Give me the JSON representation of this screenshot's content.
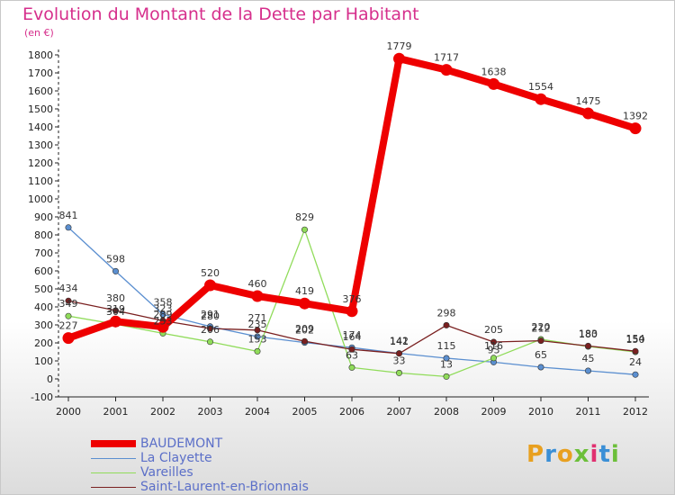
{
  "title": "Evolution du Montant de la Dette par Habitant",
  "unit": "(en €)",
  "brand": {
    "text": "Proxiti",
    "letters": [
      "P",
      "r",
      "o",
      "x",
      "i",
      "t",
      "i"
    ],
    "colors": [
      "#e8a020",
      "#3a8fd6",
      "#e8a020",
      "#6cbf3a",
      "#e03070",
      "#3a8fd6",
      "#6cbf3a"
    ]
  },
  "chart_data": {
    "type": "line",
    "title": "Evolution du Montant de la Dette par Habitant",
    "ylabel": "(en €)",
    "xlabel": "",
    "x": [
      "2000",
      "2001",
      "2002",
      "2003",
      "2004",
      "2005",
      "2006",
      "2007",
      "2008",
      "2009",
      "2010",
      "2011",
      "2012"
    ],
    "ylim": [
      -100,
      1800
    ],
    "yticks": [
      "-100",
      "0",
      "100",
      "200",
      "300",
      "400",
      "500",
      "600",
      "700",
      "800",
      "900",
      "1000",
      "1100",
      "1200",
      "1300",
      "1400",
      "1500",
      "1600",
      "1700",
      "1800"
    ],
    "grid": false,
    "legend_position": "bottom-left",
    "series": [
      {
        "name": "BAUDEMONT",
        "color": "#ee0000",
        "values": [
          227,
          319,
          289,
          520,
          460,
          419,
          376,
          1779,
          1717,
          1638,
          1554,
          1475,
          1392
        ],
        "labels": [
          "227",
          "319",
          "289",
          "520",
          "460",
          "419",
          "376",
          "1779",
          "1717",
          "1638",
          "1554",
          "1475",
          "1392"
        ]
      },
      {
        "name": "La Clayette",
        "color": "#5b8fd0",
        "values": [
          841,
          598,
          358,
          291,
          235,
          202,
          174,
          142,
          115,
          93,
          65,
          45,
          24
        ],
        "labels": [
          "841",
          "598",
          "358",
          "291",
          "235",
          "202",
          "174",
          "142",
          "115",
          "93",
          "65",
          "45",
          "24"
        ]
      },
      {
        "name": "Vareilles",
        "color": "#90dc5a",
        "values": [
          349,
          304,
          253,
          206,
          153,
          829,
          63,
          33,
          13,
          116,
          220,
          180,
          150
        ],
        "labels": [
          "349",
          "304",
          "253",
          "206",
          "153",
          "829",
          "63",
          "33",
          "13",
          "116",
          "220",
          "180",
          "150"
        ]
      },
      {
        "name": "Saint-Laurent-en-Brionnais",
        "color": "#7a2020",
        "values": [
          434,
          380,
          323,
          280,
          271,
          209,
          164,
          141,
          298,
          205,
          212,
          183,
          154
        ],
        "labels": [
          "434",
          "380",
          "323",
          "280",
          "271",
          "209",
          "164",
          "141",
          "298",
          "205",
          "212",
          "183",
          "154"
        ]
      }
    ]
  }
}
